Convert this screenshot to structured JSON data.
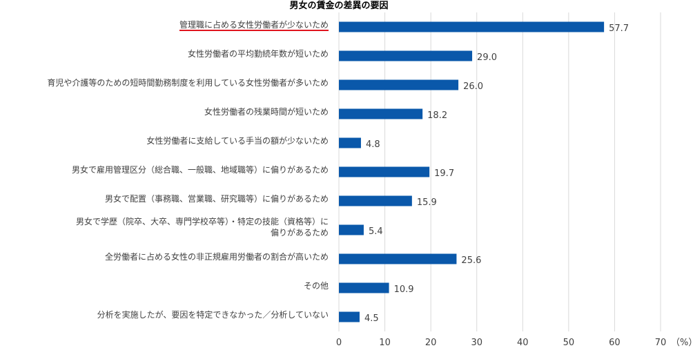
{
  "chart_data": {
    "type": "bar",
    "orientation": "horizontal",
    "title": "男女の賃金の差異の要因",
    "categories": [
      [
        "管理職に占める女性労働者が少ないため"
      ],
      [
        "女性労働者の平均勤続年数が短いため"
      ],
      [
        "育児や介護等のための短時間勤務制度を利用している女性労働者が多いため"
      ],
      [
        "女性労働者の残業時間が短いため"
      ],
      [
        "女性労働者に支給している手当の額が少ないため"
      ],
      [
        "男女で雇用管理区分（総合職、一般職、地域職等）に偏りがあるため"
      ],
      [
        "男女で配置（事務職、営業職、研究職等）に偏りがあるため"
      ],
      [
        "男女で学歴（院卒、大卒、専門学校卒等）・特定の技能（資格等）に",
        "偏りがあるため"
      ],
      [
        "全労働者に占める女性の非正規雇用労働者の割合が高いため"
      ],
      [
        "その他"
      ],
      [
        "分析を実施したが、要因を特定できなかった／分析していない"
      ]
    ],
    "values": [
      57.7,
      29.0,
      26.0,
      18.2,
      4.8,
      19.7,
      15.9,
      5.4,
      25.6,
      10.9,
      4.5
    ],
    "value_labels": [
      "57.7",
      "29.0",
      "26.0",
      "18.2",
      "4.8",
      "19.7",
      "15.9",
      "5.4",
      "25.6",
      "10.9",
      "4.5"
    ],
    "xlim": [
      0,
      70
    ],
    "xticks": [
      "0",
      "10",
      "20",
      "30",
      "40",
      "50",
      "60",
      "70"
    ],
    "xunit": "（%）",
    "grid": true,
    "highlighted_category_index": 0,
    "colors": {
      "bar": "#0a58aa",
      "highlight_underline": "#e0141e",
      "grid": "#d9d9d9",
      "text": "#404040"
    }
  }
}
